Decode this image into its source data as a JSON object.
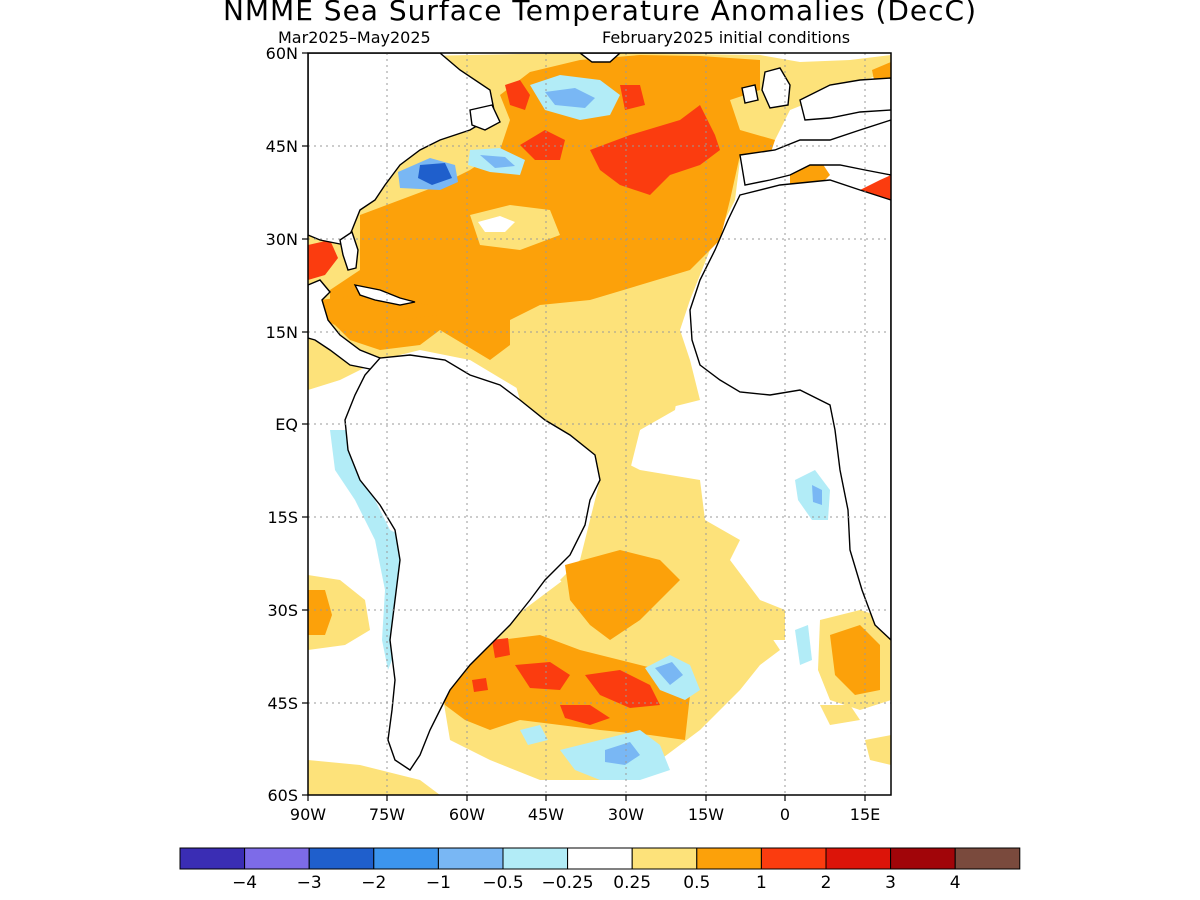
{
  "title": "NMME Sea Surface Temperature Anomalies (DecC)",
  "subtitle_left": "Mar2025–May2025",
  "subtitle_right": "February2025 initial conditions",
  "map": {
    "lon_range": [
      -90,
      20
    ],
    "lat_range": [
      -60,
      60
    ],
    "y_ticks": [
      "60N",
      "45N",
      "30N",
      "15N",
      "EQ",
      "15S",
      "30S",
      "45S",
      "60S"
    ],
    "y_tick_values": [
      60,
      45,
      30,
      15,
      0,
      -15,
      -30,
      -45,
      -60
    ],
    "x_ticks": [
      "90W",
      "75W",
      "60W",
      "45W",
      "30W",
      "15W",
      "0",
      "15E"
    ],
    "x_tick_values": [
      -90,
      -75,
      -60,
      -45,
      -30,
      -15,
      0,
      15
    ],
    "grid": "dotted"
  },
  "colorbar": {
    "colors": [
      "#3a2db4",
      "#7d6be8",
      "#1f5fcc",
      "#3c95ee",
      "#79b7f4",
      "#b2ecf7",
      "#ffffff",
      "#fde27a",
      "#fca10a",
      "#fb3c0f",
      "#dc1409",
      "#a10509",
      "#7a4a3d"
    ],
    "labels": [
      "−4",
      "−3",
      "−2",
      "−1",
      "−0.5",
      "−0.25",
      "0.25",
      "0.5",
      "1",
      "2",
      "3",
      "4"
    ]
  },
  "legend": {
    "light_yellow": "#fde27a",
    "orange": "#fca10a",
    "red": "#fb3c0f",
    "light_cyan": "#b2ecf7",
    "light_blue": "#79b7f4",
    "blue": "#3c95ee",
    "dark_blue": "#1f5fcc",
    "brown": "#7a4a3d"
  }
}
